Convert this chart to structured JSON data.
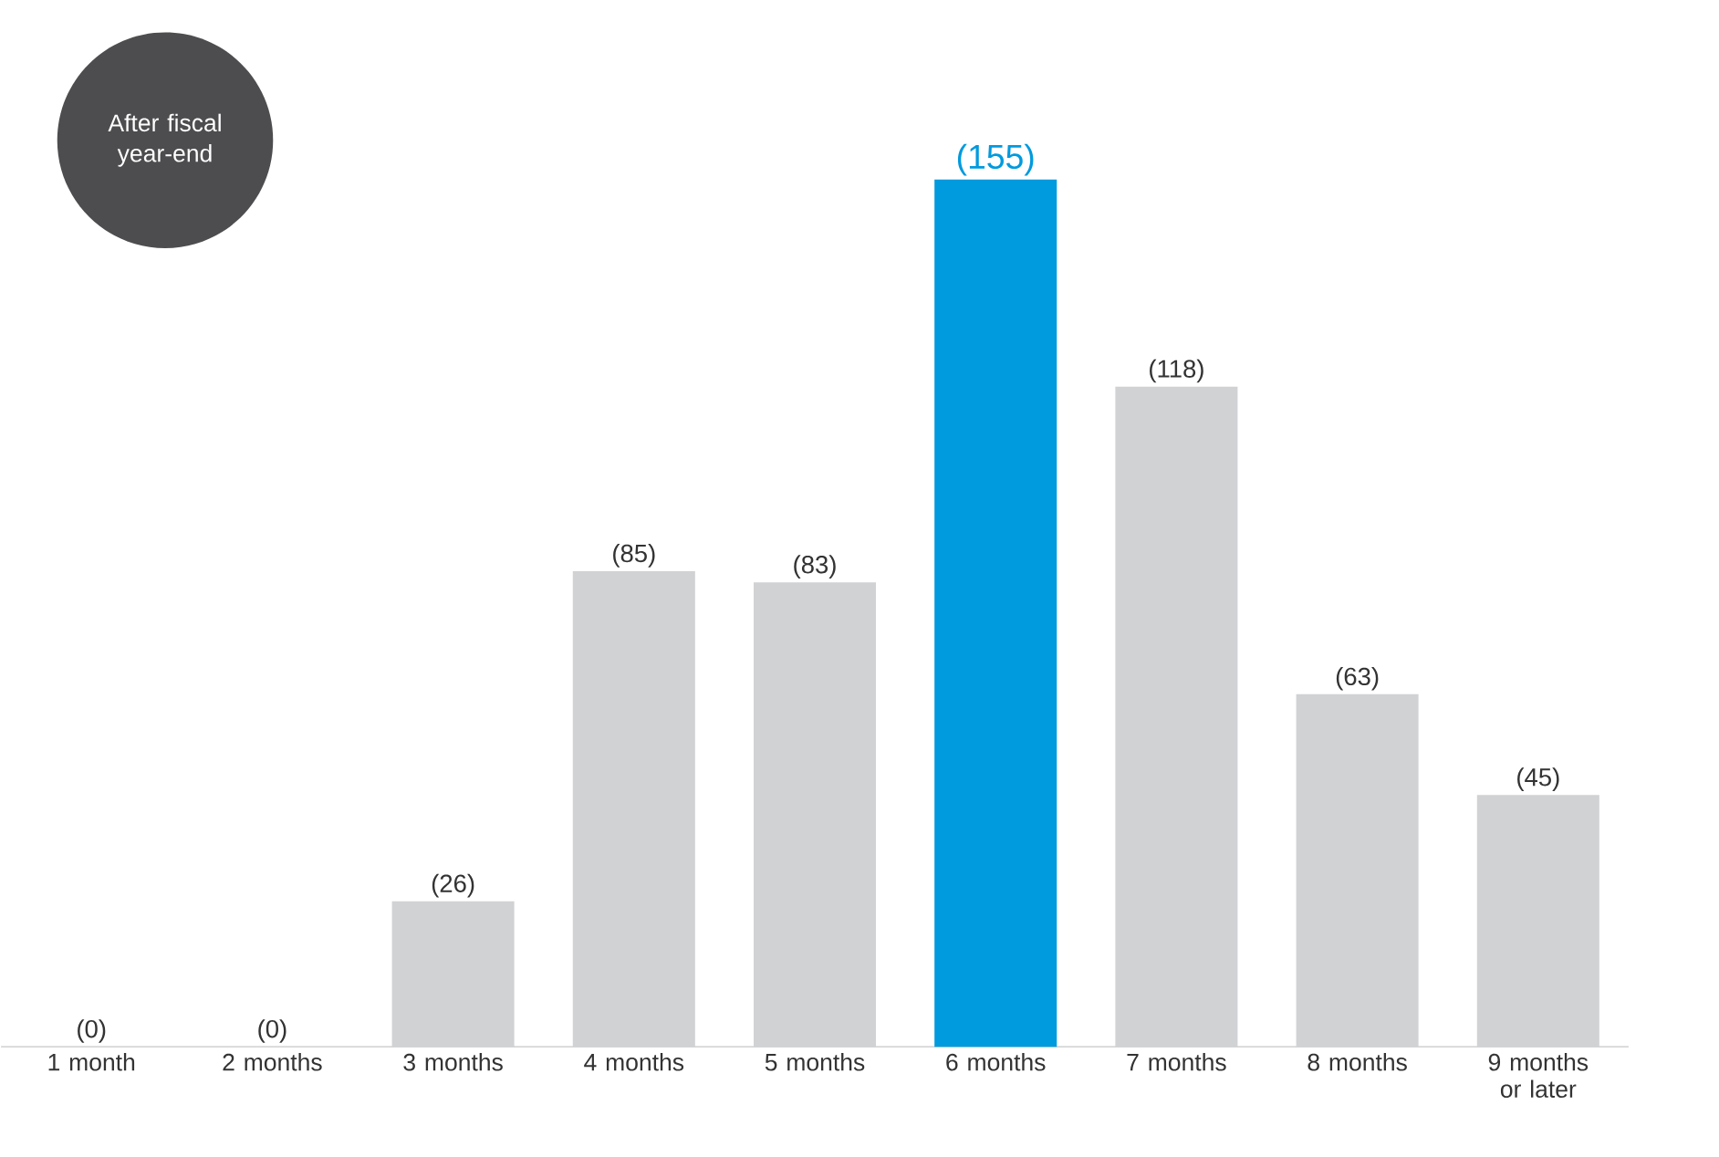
{
  "chart_data": {
    "type": "bar",
    "categories": [
      "1 month",
      "2 months",
      "3 months",
      "4 months",
      "5 months",
      "6 months",
      "7 months",
      "8 months",
      "9 months or later"
    ],
    "values": [
      0,
      0,
      26,
      85,
      83,
      155,
      118,
      63,
      45
    ],
    "colors": [
      "#d1d2d4",
      "#d1d2d4",
      "#d1d2d4",
      "#d1d2d4",
      "#d1d2d4",
      "#009ade",
      "#d1d2d4",
      "#d1d2d4",
      "#d1d2d4"
    ],
    "value_labels": [
      "(0)",
      "(0)",
      "(26)",
      "(85)",
      "(83)",
      "(155)",
      "(118)",
      "(63)",
      "(45)"
    ],
    "annotations": [
      "After fiscal year-end"
    ]
  }
}
